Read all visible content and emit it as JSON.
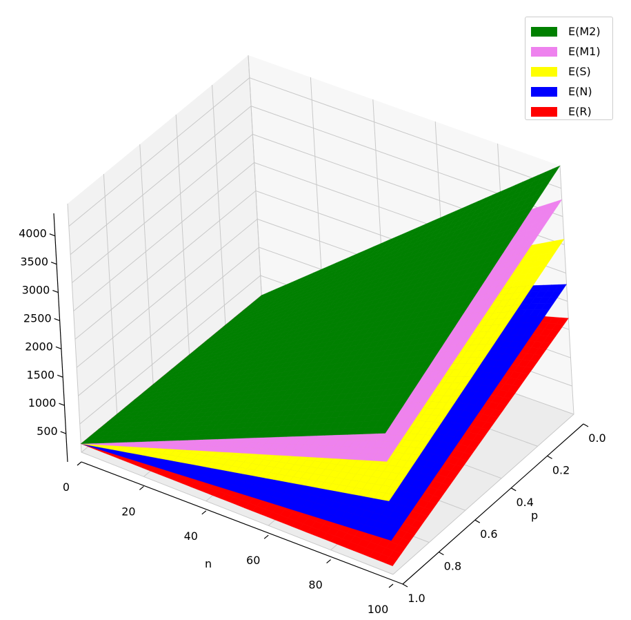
{
  "chart_data": {
    "type": "surface3d",
    "x": {
      "label": "n",
      "range": [
        0,
        100
      ],
      "ticks": [
        "0",
        "20",
        "40",
        "60",
        "80",
        "100"
      ]
    },
    "y": {
      "label": "p",
      "range": [
        0.0,
        1.0
      ],
      "ticks": [
        "0.0",
        "0.2",
        "0.4",
        "0.6",
        "0.8",
        "1.0"
      ]
    },
    "z": {
      "label": "",
      "range": [
        0,
        4400
      ],
      "ticks": [
        "500",
        "1000",
        "1500",
        "2000",
        "2500",
        "3000",
        "3500",
        "4000"
      ]
    },
    "grid": true,
    "legend_position": "top-right",
    "series": [
      {
        "name": "E(M2)",
        "color": "#008000",
        "corners": {
          "n0_p0": 150,
          "n0_p1": 150,
          "n100_p0": 4400,
          "n100_p1": 2500
        }
      },
      {
        "name": "E(M1)",
        "color": "#ee82ee",
        "corners": {
          "n0_p0": 150,
          "n0_p1": 150,
          "n100_p0": 3800,
          "n100_p1": 2000
        }
      },
      {
        "name": "E(S)",
        "color": "#ffff00",
        "corners": {
          "n0_p0": 150,
          "n0_p1": 150,
          "n100_p0": 3100,
          "n100_p1": 1300
        }
      },
      {
        "name": "E(N)",
        "color": "#0000ff",
        "corners": {
          "n0_p0": 150,
          "n0_p1": 150,
          "n100_p0": 2300,
          "n100_p1": 600
        }
      },
      {
        "name": "E(R)",
        "color": "#ff0000",
        "corners": {
          "n0_p0": 150,
          "n0_p1": 150,
          "n100_p0": 1700,
          "n100_p1": 150
        }
      }
    ]
  }
}
